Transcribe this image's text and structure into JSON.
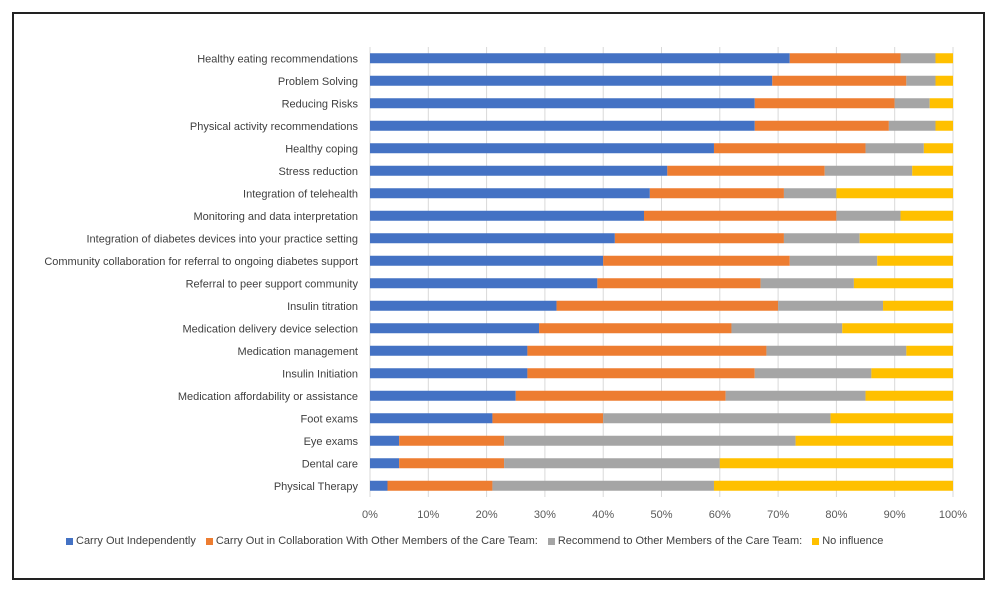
{
  "chart_data": {
    "type": "bar",
    "orientation": "horizontal",
    "stacked": "100%",
    "title": "",
    "xlabel": "",
    "ylabel": "",
    "xlim": [
      0,
      100
    ],
    "grid": true,
    "legend_position": "bottom",
    "x_ticks": [
      "0%",
      "10%",
      "20%",
      "30%",
      "40%",
      "50%",
      "60%",
      "70%",
      "80%",
      "90%",
      "100%"
    ],
    "categories": [
      "Healthy eating recommendations",
      "Problem Solving",
      "Reducing Risks",
      "Physical activity recommendations",
      "Healthy coping",
      "Stress reduction",
      "Integration of telehealth",
      "Monitoring and data interpretation",
      "Integration of diabetes devices into your practice setting",
      "Community collaboration for referral to ongoing diabetes support",
      "Referral to peer support community",
      "Insulin titration",
      "Medication delivery device selection",
      "Medication management",
      "Insulin Initiation",
      "Medication affordability or assistance",
      "Foot exams",
      "Eye exams",
      "Dental care",
      "Physical Therapy"
    ],
    "series": [
      {
        "name": "Carry Out Independently",
        "color": "#4472c4",
        "values": [
          72,
          69,
          66,
          66,
          59,
          51,
          48,
          47,
          42,
          40,
          39,
          32,
          29,
          27,
          27,
          25,
          21,
          5,
          5,
          3
        ]
      },
      {
        "name": "Carry Out in Collaboration With Other Members of the Care Team:",
        "color": "#ed7d31",
        "values": [
          19,
          23,
          24,
          23,
          26,
          27,
          23,
          33,
          29,
          32,
          28,
          38,
          33,
          41,
          39,
          36,
          19,
          18,
          18,
          18
        ]
      },
      {
        "name": "Recommend to Other Members of the Care Team:",
        "color": "#a5a5a5",
        "values": [
          6,
          5,
          6,
          8,
          10,
          15,
          9,
          11,
          13,
          15,
          16,
          18,
          19,
          24,
          20,
          24,
          39,
          50,
          37,
          38
        ]
      },
      {
        "name": "No influence",
        "color": "#ffc000",
        "values": [
          3,
          3,
          4,
          3,
          5,
          7,
          20,
          9,
          16,
          13,
          17,
          12,
          19,
          8,
          14,
          15,
          21,
          27,
          40,
          41
        ]
      }
    ]
  }
}
